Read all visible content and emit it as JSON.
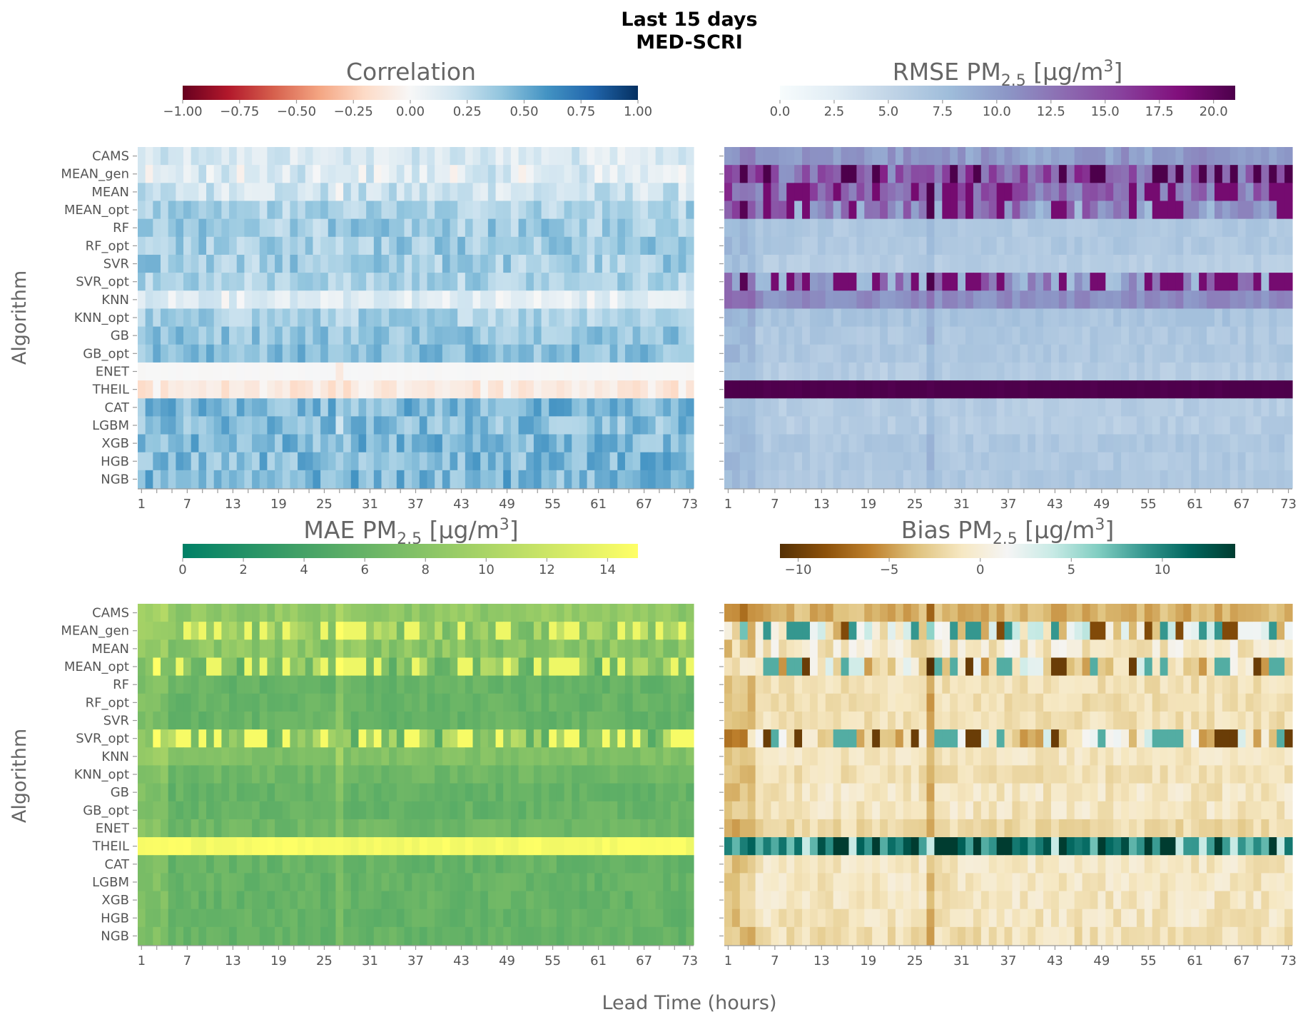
{
  "figure": {
    "title_line1": "Last 15 days",
    "title_line2": "MED-SCRI",
    "xlabel": "Lead Time (hours)",
    "ylabel": "Algorithm"
  },
  "chart_data": [
    {
      "type": "heatmap",
      "id": "corr",
      "title": "Correlation",
      "title_base": "Correlation",
      "title_sub": "",
      "title_unit": "",
      "title_sup": "",
      "title_close": "",
      "colormap": "RdBu",
      "colormap_stops": [
        "#67001f",
        "#b2182b",
        "#d6604d",
        "#f4a582",
        "#fddbc7",
        "#f7f7f7",
        "#d1e5f0",
        "#92c5de",
        "#4393c3",
        "#2166ac",
        "#053061"
      ],
      "vmin": -1.0,
      "vmax": 1.0,
      "colorbar_ticks": [
        -1.0,
        -0.75,
        -0.5,
        -0.25,
        0.0,
        0.25,
        0.5,
        0.75,
        1.0
      ],
      "colorbar_tick_labels": [
        "−1.00",
        "−0.75",
        "−0.50",
        "−0.25",
        "0.00",
        "0.25",
        "0.50",
        "0.75",
        "1.00"
      ],
      "x_tick_labels": [
        "1",
        "7",
        "13",
        "19",
        "25",
        "31",
        "37",
        "43",
        "49",
        "55",
        "61",
        "67",
        "73"
      ],
      "rows": [
        "CAMS",
        "MEAN_gen",
        "MEAN",
        "MEAN_opt",
        "RF",
        "RF_opt",
        "SVR",
        "SVR_opt",
        "KNN",
        "KNN_opt",
        "GB",
        "GB_opt",
        "ENET",
        "THEIL",
        "CAT",
        "LGBM",
        "XGB",
        "HGB",
        "NGB"
      ],
      "row_base": [
        0.15,
        0.12,
        0.2,
        0.32,
        0.35,
        0.36,
        0.35,
        0.32,
        0.1,
        0.33,
        0.4,
        0.42,
        0.0,
        -0.1,
        0.45,
        0.42,
        0.45,
        0.44,
        0.45
      ],
      "row_spread": [
        0.25,
        0.35,
        0.3,
        0.25,
        0.28,
        0.28,
        0.28,
        0.25,
        0.25,
        0.25,
        0.25,
        0.25,
        0.02,
        0.2,
        0.3,
        0.3,
        0.3,
        0.3,
        0.3
      ],
      "row_values": null,
      "note": "Cell values approximated per row; individual cell values are not labeled in the source."
    },
    {
      "type": "heatmap",
      "id": "rmse",
      "title": "RMSE PM2.5 [μg/m3]",
      "title_base": "RMSE PM",
      "title_sub": "2.5",
      "title_unit": " [μg/m",
      "title_sup": "3",
      "title_close": "]",
      "colormap": "BuPu",
      "colormap_stops": [
        "#f7fcfd",
        "#e0ecf4",
        "#bfd3e6",
        "#9ebcda",
        "#8c96c6",
        "#8c6bb1",
        "#88419d",
        "#810f7c",
        "#4d004b"
      ],
      "vmin": 0.0,
      "vmax": 21.0,
      "colorbar_ticks": [
        0.0,
        2.5,
        5.0,
        7.5,
        10.0,
        12.5,
        15.0,
        17.5,
        20.0
      ],
      "colorbar_tick_labels": [
        "0.0",
        "2.5",
        "5.0",
        "7.5",
        "10.0",
        "12.5",
        "15.0",
        "17.5",
        "20.0"
      ],
      "x_tick_labels": [
        "1",
        "7",
        "13",
        "19",
        "25",
        "31",
        "37",
        "43",
        "49",
        "55",
        "61",
        "67",
        "73"
      ],
      "rows": [
        "CAMS",
        "MEAN_gen",
        "MEAN",
        "MEAN_opt",
        "RF",
        "RF_opt",
        "SVR",
        "SVR_opt",
        "KNN",
        "KNN_opt",
        "GB",
        "GB_opt",
        "ENET",
        "THEIL",
        "CAT",
        "LGBM",
        "XGB",
        "HGB",
        "NGB"
      ],
      "row_base": [
        10.0,
        14.0,
        13.0,
        11.0,
        6.5,
        6.5,
        6.0,
        11.0,
        11.0,
        7.0,
        6.5,
        6.5,
        6.0,
        21.0,
        6.0,
        6.0,
        6.5,
        6.5,
        6.5
      ],
      "row_spread": [
        3.0,
        7.0,
        6.0,
        8.0,
        1.5,
        1.5,
        1.5,
        8.0,
        2.0,
        1.5,
        1.5,
        1.5,
        1.5,
        0.5,
        1.5,
        1.5,
        1.5,
        1.5,
        1.5
      ],
      "row_values": null,
      "note": "Cell values approximated per row; individual cell values are not labeled in the source."
    },
    {
      "type": "heatmap",
      "id": "mae",
      "title": "MAE PM2.5 [μg/m3]",
      "title_base": "MAE PM",
      "title_sub": "2.5",
      "title_unit": " [μg/m",
      "title_sup": "3",
      "title_close": "]",
      "colormap": "summer",
      "colormap_stops": [
        "#008066",
        "#ffff66"
      ],
      "vmin": 0.0,
      "vmax": 15.0,
      "colorbar_ticks": [
        0,
        2,
        4,
        6,
        8,
        10,
        12,
        14
      ],
      "colorbar_tick_labels": [
        "0",
        "2",
        "4",
        "6",
        "8",
        "10",
        "12",
        "14"
      ],
      "x_tick_labels": [
        "1",
        "7",
        "13",
        "19",
        "25",
        "31",
        "37",
        "43",
        "49",
        "55",
        "61",
        "67",
        "73"
      ],
      "rows": [
        "CAMS",
        "MEAN_gen",
        "MEAN",
        "MEAN_opt",
        "RF",
        "RF_opt",
        "SVR",
        "SVR_opt",
        "KNN",
        "KNN_opt",
        "GB",
        "GB_opt",
        "ENET",
        "THEIL",
        "CAT",
        "LGBM",
        "XGB",
        "HGB",
        "NGB"
      ],
      "row_base": [
        8.5,
        9.0,
        8.0,
        8.0,
        6.0,
        6.0,
        6.0,
        8.0,
        7.5,
        6.5,
        6.0,
        6.0,
        6.5,
        14.5,
        6.0,
        6.0,
        6.0,
        6.0,
        6.0
      ],
      "row_spread": [
        2.0,
        5.0,
        3.0,
        6.0,
        1.5,
        1.5,
        1.5,
        6.5,
        1.5,
        1.5,
        1.5,
        1.5,
        1.5,
        1.0,
        1.5,
        1.5,
        1.5,
        1.5,
        1.5
      ],
      "row_values": null,
      "note": "Cell values approximated per row; individual cell values are not labeled in the source."
    },
    {
      "type": "heatmap",
      "id": "bias",
      "title": "Bias PM2.5 [μg/m3]",
      "title_base": "Bias PM",
      "title_sub": "2.5",
      "title_unit": " [μg/m",
      "title_sup": "3",
      "title_close": "]",
      "colormap": "BrBG",
      "colormap_stops": [
        "#543005",
        "#8c510a",
        "#bf812d",
        "#dfc27d",
        "#f6e8c3",
        "#f5f5f5",
        "#c7eae5",
        "#80cdc1",
        "#35978f",
        "#01665e",
        "#003c30"
      ],
      "vmin": -11.0,
      "vmax": 14.0,
      "colorbar_ticks": [
        -10,
        -5,
        0,
        5,
        10
      ],
      "colorbar_tick_labels": [
        "−10",
        "−5",
        "0",
        "5",
        "10"
      ],
      "x_tick_labels": [
        "1",
        "7",
        "13",
        "19",
        "25",
        "31",
        "37",
        "43",
        "49",
        "55",
        "61",
        "67",
        "73"
      ],
      "rows": [
        "CAMS",
        "MEAN_gen",
        "MEAN",
        "MEAN_opt",
        "RF",
        "RF_opt",
        "SVR",
        "SVR_opt",
        "KNN",
        "KNN_opt",
        "GB",
        "GB_opt",
        "ENET",
        "THEIL",
        "CAT",
        "LGBM",
        "XGB",
        "HGB",
        "NGB"
      ],
      "row_base": [
        -4.0,
        0.0,
        -0.5,
        -1.0,
        -1.5,
        -1.5,
        -1.5,
        -1.0,
        -1.0,
        -1.5,
        -1.0,
        -1.0,
        -2.0,
        10.0,
        -1.0,
        -1.0,
        -1.0,
        -1.0,
        -1.5
      ],
      "row_spread": [
        2.5,
        9.0,
        4.0,
        9.0,
        2.0,
        2.0,
        2.0,
        9.0,
        2.0,
        2.0,
        2.5,
        2.5,
        2.0,
        6.0,
        2.5,
        2.5,
        2.5,
        2.5,
        2.5
      ],
      "row_values": null,
      "note": "Cell values approximated per row; individual cell values are not labeled in the source."
    }
  ]
}
